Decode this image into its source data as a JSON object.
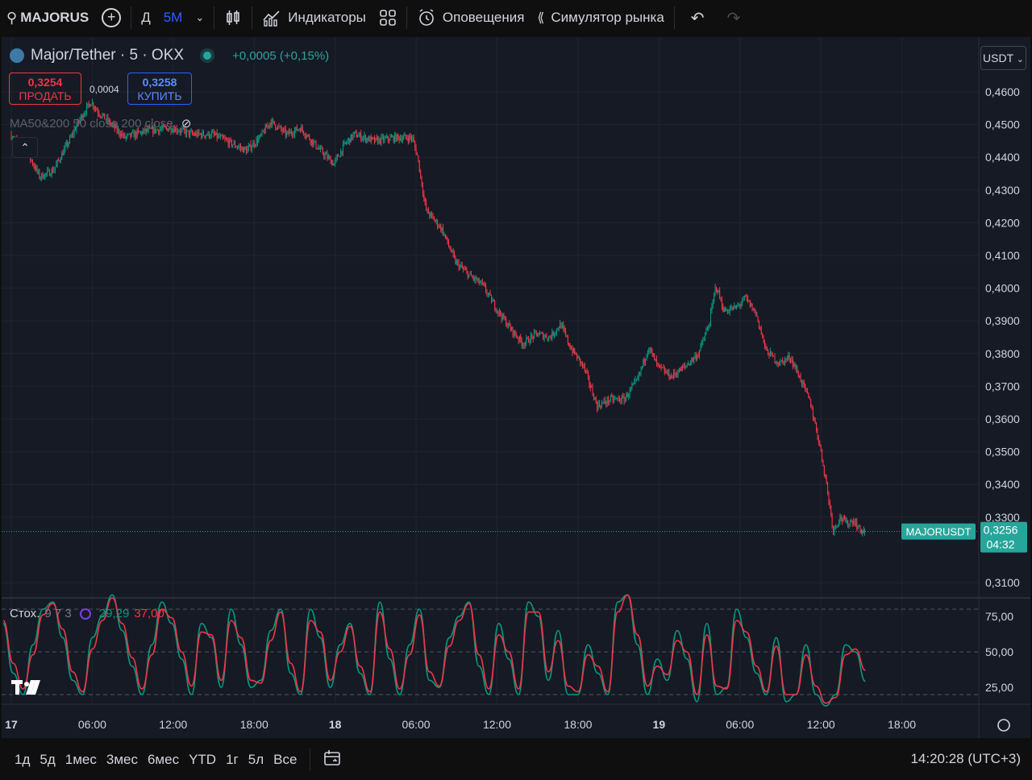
{
  "topbar": {
    "symbol": "MAJORUS",
    "interval_day": "Д",
    "interval_active": "5М",
    "indicators": "Индикаторы",
    "alerts": "Оповещения",
    "replay": "Симулятор рынка"
  },
  "legend": {
    "title": "Major/Tether · 5 · OKX",
    "change": "+0,0005 (+0,15%)"
  },
  "trade": {
    "sell_price": "0,3254",
    "sell_label": "ПРОДАТЬ",
    "spread": "0,0004",
    "buy_price": "0,3258",
    "buy_label": "КУПИТЬ"
  },
  "ma_label": "MA50&200 50 close 200 close",
  "currency": "USDT",
  "collapse_icon": "chevron-up-icon",
  "stoch": {
    "name": "Стох.",
    "params": "9 7 3",
    "k_value": "29,29",
    "d_value": "37,00"
  },
  "bottombar": {
    "ranges": [
      "1д",
      "5д",
      "1мес",
      "3мес",
      "6мес",
      "YTD",
      "1г",
      "5л",
      "Все"
    ],
    "clock": "14:20:28 (UTC+3)"
  },
  "colors": {
    "up": "#089981",
    "down": "#f23645",
    "background": "#161a25",
    "grid": "#20242f",
    "last_price": "#26a69a"
  },
  "chart_data": [
    {
      "type": "candlestick",
      "symbol_label": "MAJORUSDT",
      "last_price": "0,3256",
      "countdown": "04:32",
      "ylim": [
        0.31,
        0.46
      ],
      "y_ticks": [
        "0,4600",
        "0,4500",
        "0,4400",
        "0,4300",
        "0,4200",
        "0,4100",
        "0,4000",
        "0,3900",
        "0,3800",
        "0,3700",
        "0,3600",
        "0,3500",
        "0,3400",
        "0,3300",
        "0,3100"
      ],
      "x_ticks": [
        "17",
        "06:00",
        "12:00",
        "18:00",
        "18",
        "06:00",
        "12:00",
        "18:00",
        "19",
        "06:00",
        "12:00",
        "18:00"
      ],
      "x_tick_hours": [
        0,
        6,
        12,
        18,
        24,
        30,
        36,
        42,
        48,
        54,
        60,
        66
      ],
      "x_range_hours": [
        0,
        72
      ],
      "price_path": [
        [
          0.0,
          0.447
        ],
        [
          1.2,
          0.442
        ],
        [
          2.2,
          0.434
        ],
        [
          3.2,
          0.436
        ],
        [
          4.5,
          0.446
        ],
        [
          5.2,
          0.452
        ],
        [
          6.0,
          0.457
        ],
        [
          6.5,
          0.454
        ],
        [
          7.5,
          0.45
        ],
        [
          8.5,
          0.446
        ],
        [
          10.0,
          0.448
        ],
        [
          12.0,
          0.449
        ],
        [
          13.5,
          0.447
        ],
        [
          15.0,
          0.447
        ],
        [
          16.0,
          0.445
        ],
        [
          17.5,
          0.442
        ],
        [
          18.5,
          0.446
        ],
        [
          19.3,
          0.451
        ],
        [
          20.5,
          0.447
        ],
        [
          21.5,
          0.449
        ],
        [
          23.0,
          0.442
        ],
        [
          24.0,
          0.438
        ],
        [
          24.8,
          0.444
        ],
        [
          25.5,
          0.447
        ],
        [
          27.0,
          0.445
        ],
        [
          28.5,
          0.446
        ],
        [
          29.8,
          0.446
        ],
        [
          30.2,
          0.44
        ],
        [
          30.8,
          0.424
        ],
        [
          32.0,
          0.418
        ],
        [
          33.0,
          0.408
        ],
        [
          34.0,
          0.404
        ],
        [
          35.0,
          0.401
        ],
        [
          36.0,
          0.394
        ],
        [
          37.0,
          0.388
        ],
        [
          38.0,
          0.383
        ],
        [
          39.0,
          0.386
        ],
        [
          40.0,
          0.385
        ],
        [
          40.8,
          0.389
        ],
        [
          41.5,
          0.382
        ],
        [
          42.5,
          0.376
        ],
        [
          43.5,
          0.364
        ],
        [
          44.5,
          0.366
        ],
        [
          45.5,
          0.366
        ],
        [
          46.5,
          0.372
        ],
        [
          47.3,
          0.382
        ],
        [
          48.0,
          0.376
        ],
        [
          49.0,
          0.373
        ],
        [
          50.0,
          0.376
        ],
        [
          51.0,
          0.38
        ],
        [
          51.8,
          0.389
        ],
        [
          52.3,
          0.401
        ],
        [
          52.9,
          0.393
        ],
        [
          53.8,
          0.394
        ],
        [
          54.5,
          0.397
        ],
        [
          55.3,
          0.392
        ],
        [
          56.0,
          0.381
        ],
        [
          57.0,
          0.377
        ],
        [
          57.8,
          0.379
        ],
        [
          58.6,
          0.372
        ],
        [
          59.3,
          0.365
        ],
        [
          60.0,
          0.352
        ],
        [
          60.5,
          0.34
        ],
        [
          61.0,
          0.326
        ],
        [
          61.5,
          0.33
        ],
        [
          62.0,
          0.328
        ],
        [
          62.5,
          0.329
        ],
        [
          63.0,
          0.326
        ],
        [
          63.3,
          0.3256
        ]
      ]
    },
    {
      "type": "line",
      "name": "Стох.",
      "ylim": [
        0,
        100
      ],
      "y_ticks": [
        "75,00",
        "50,00",
        "25,00"
      ],
      "levels": [
        80,
        50,
        20
      ],
      "series": [
        {
          "name": "K",
          "values": [
            70,
            35,
            20,
            55,
            80,
            85,
            60,
            30,
            20,
            60,
            75,
            90,
            65,
            40,
            20,
            55,
            85,
            70,
            45,
            20,
            70,
            60,
            25,
            80,
            55,
            25,
            30,
            65,
            80,
            35,
            20,
            80,
            60,
            25,
            55,
            70,
            35,
            20,
            85,
            45,
            20,
            55,
            80,
            30,
            25,
            60,
            75,
            85,
            40,
            20,
            70,
            45,
            20,
            85,
            75,
            30,
            65,
            20,
            20,
            55,
            35,
            20,
            85,
            90,
            55,
            20,
            45,
            30,
            65,
            45,
            15,
            70,
            20,
            25,
            80,
            60,
            35,
            20,
            60,
            15,
            20,
            55,
            20,
            12,
            20,
            55,
            50,
            29.29
          ]
        },
        {
          "name": "D",
          "values": [
            72,
            42,
            24,
            48,
            76,
            84,
            66,
            36,
            22,
            52,
            72,
            88,
            70,
            46,
            24,
            48,
            80,
            74,
            50,
            26,
            64,
            62,
            30,
            72,
            60,
            30,
            28,
            58,
            78,
            42,
            22,
            72,
            64,
            30,
            50,
            68,
            40,
            22,
            78,
            52,
            24,
            48,
            76,
            36,
            26,
            54,
            72,
            84,
            48,
            24,
            62,
            50,
            24,
            78,
            78,
            36,
            58,
            26,
            22,
            48,
            40,
            22,
            78,
            90,
            62,
            26,
            40,
            34,
            58,
            50,
            20,
            62,
            26,
            24,
            72,
            64,
            40,
            22,
            54,
            20,
            20,
            48,
            26,
            14,
            18,
            48,
            52,
            37.0
          ]
        }
      ]
    }
  ]
}
